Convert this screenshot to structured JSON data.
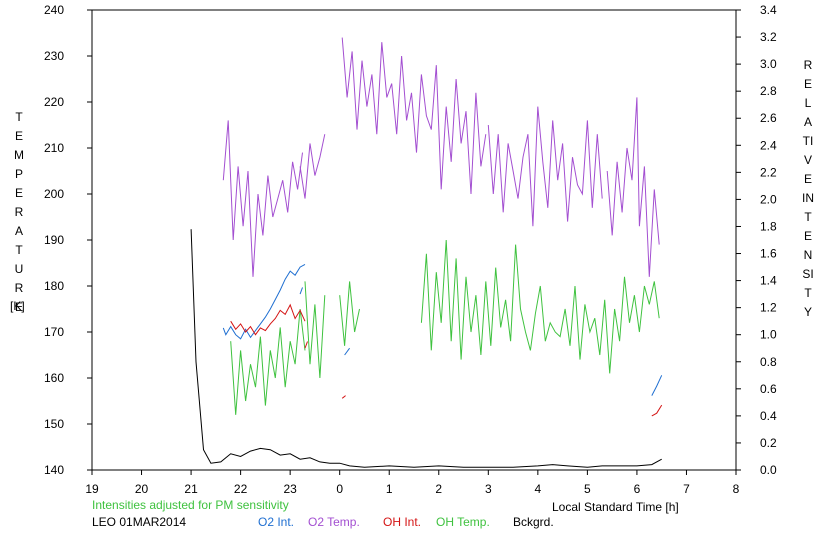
{
  "chart_data": {
    "type": "line",
    "x_axis": {
      "ticks": [
        "19",
        "20",
        "21",
        "22",
        "23",
        "0",
        "1",
        "2",
        "3",
        "4",
        "5",
        "6",
        "7",
        "8"
      ],
      "label": "Local Standard Time [h]"
    },
    "y_axis_left": {
      "label_vertical": "TEMPERATURE",
      "unit": "[K]",
      "ticks": [
        "240",
        "230",
        "220",
        "210",
        "200",
        "190",
        "180",
        "170",
        "160",
        "150",
        "140"
      ],
      "ylim": [
        140,
        240
      ]
    },
    "y_axis_right": {
      "label_vertical": "RELATIVE  INTENSITY",
      "ticks": [
        "3.4",
        "3.2",
        "3.0",
        "2.8",
        "2.6",
        "2.4",
        "2.2",
        "2.0",
        "1.8",
        "1.6",
        "1.4",
        "1.2",
        "1.0",
        "0.8",
        "0.6",
        "0.4",
        "0.2",
        "0.0"
      ],
      "ylim": [
        0,
        3.4
      ]
    },
    "note": "Intensities adjusted for PM sensitivity",
    "station": "LEO 01MAR2014",
    "legend": [
      {
        "name": "O2 Int.",
        "color": "#1f6fd1"
      },
      {
        "name": "O2 Temp.",
        "color": "#a34fd1"
      },
      {
        "name": "OH Int.",
        "color": "#d41414"
      },
      {
        "name": "OH Temp.",
        "color": "#3fc23f"
      },
      {
        "name": "Bckgrd.",
        "color": "#000000"
      }
    ],
    "series": [
      {
        "name": "Bckgrd.",
        "axis": "right",
        "color": "#000000",
        "x": [
          21.0,
          21.1,
          21.25,
          21.4,
          21.6,
          21.8,
          22.0,
          22.2,
          22.4,
          22.6,
          22.8,
          23.0,
          23.2,
          23.4,
          23.6,
          23.8,
          24.0,
          24.2,
          24.5,
          25.0,
          25.5,
          26.0,
          26.5,
          27.0,
          27.5,
          28.0,
          28.3,
          28.6,
          29.0,
          29.3,
          29.6,
          30.0,
          30.3,
          30.5
        ],
        "y": [
          1.78,
          0.8,
          0.15,
          0.05,
          0.06,
          0.12,
          0.1,
          0.14,
          0.16,
          0.15,
          0.11,
          0.12,
          0.08,
          0.09,
          0.06,
          0.05,
          0.05,
          0.03,
          0.02,
          0.03,
          0.02,
          0.03,
          0.02,
          0.02,
          0.02,
          0.03,
          0.04,
          0.03,
          0.02,
          0.03,
          0.03,
          0.03,
          0.04,
          0.08
        ]
      },
      {
        "name": "O2 Temp.",
        "axis": "left",
        "color": "#a34fd1",
        "segments": [
          {
            "x": [
              21.65,
              21.75,
              21.85,
              21.95,
              22.05,
              22.15,
              22.25,
              22.35,
              22.45,
              22.55,
              22.65,
              22.75,
              22.85,
              22.95,
              23.05,
              23.15,
              23.25
            ],
            "y": [
              203,
              216,
              190,
              206,
              193,
              205,
              182,
              200,
              191,
              204,
              195,
              199,
              203,
              196,
              207,
              201,
              209
            ]
          },
          {
            "x": [
              23.2,
              23.3,
              23.4,
              23.5,
              23.6,
              23.7
            ],
            "y": [
              206,
              199,
              211,
              204,
              208,
              213
            ]
          },
          {
            "x": [
              24.05,
              24.15,
              24.25,
              24.35,
              24.45,
              24.55,
              24.65,
              24.75,
              24.85,
              24.95,
              25.05,
              25.15,
              25.25,
              25.35,
              25.45,
              25.55,
              25.65,
              25.75,
              25.85,
              25.95,
              26.05,
              26.15,
              26.25,
              26.35,
              26.45,
              26.55,
              26.65,
              26.75,
              26.85,
              26.95
            ],
            "y": [
              234,
              221,
              231,
              214,
              229,
              219,
              226,
              213,
              233,
              221,
              224,
              213,
              230,
              216,
              222,
              209,
              226,
              217,
              214,
              228,
              201,
              219,
              207,
              225,
              211,
              218,
              200,
              222,
              206,
              213
            ]
          },
          {
            "x": [
              27.0,
              27.1,
              27.2,
              27.3,
              27.4,
              27.5,
              27.6,
              27.7,
              27.8,
              27.9,
              28.0,
              28.1,
              28.2,
              28.3,
              28.4,
              28.5,
              28.6,
              28.7,
              28.8,
              28.9,
              29.0,
              29.1,
              29.2,
              29.3
            ],
            "y": [
              215,
              200,
              213,
              196,
              211,
              205,
              199,
              208,
              213,
              193,
              219,
              207,
              197,
              216,
              203,
              211,
              194,
              208,
              202,
              200,
              216,
              197,
              213,
              199
            ]
          },
          {
            "x": [
              29.4,
              29.5,
              29.6,
              29.7,
              29.8,
              29.9,
              30.0,
              30.05,
              30.15,
              30.25,
              30.35,
              30.45
            ],
            "y": [
              205,
              191,
              207,
              196,
              210,
              203,
              221,
              193,
              206,
              182,
              201,
              189
            ]
          }
        ]
      },
      {
        "name": "O2 Int.",
        "axis": "right",
        "color": "#1f6fd1",
        "segments": [
          {
            "x": [
              21.65,
              21.7,
              21.8,
              21.9,
              22.0,
              22.1,
              22.2,
              22.3,
              22.4,
              22.5,
              22.6,
              22.7,
              22.8,
              22.9,
              23.0,
              23.1,
              23.2,
              23.3
            ],
            "y": [
              1.05,
              1.0,
              1.06,
              1.0,
              0.97,
              1.04,
              0.98,
              1.03,
              1.08,
              1.13,
              1.19,
              1.26,
              1.33,
              1.41,
              1.47,
              1.44,
              1.5,
              1.52
            ]
          },
          {
            "x": [
              23.2,
              23.25
            ],
            "y": [
              1.3,
              1.35
            ]
          },
          {
            "x": [
              24.1,
              24.2
            ],
            "y": [
              0.85,
              0.9
            ]
          },
          {
            "x": [
              30.3,
              30.4,
              30.5
            ],
            "y": [
              0.55,
              0.62,
              0.7
            ]
          }
        ]
      },
      {
        "name": "OH Int.",
        "axis": "right",
        "color": "#d41414",
        "segments": [
          {
            "x": [
              21.8,
              21.9,
              22.0,
              22.1,
              22.2,
              22.3,
              22.4,
              22.5,
              22.6,
              22.7,
              22.8,
              22.9,
              23.0,
              23.1,
              23.2,
              23.3
            ],
            "y": [
              1.1,
              1.04,
              1.08,
              1.02,
              1.06,
              1.0,
              1.05,
              1.03,
              1.08,
              1.12,
              1.18,
              1.15,
              1.22,
              1.12,
              1.18,
              1.1
            ]
          },
          {
            "x": [
              23.3,
              23.35
            ],
            "y": [
              0.9,
              0.95
            ]
          },
          {
            "x": [
              24.05,
              24.12
            ],
            "y": [
              0.53,
              0.55
            ]
          },
          {
            "x": [
              30.3,
              30.4,
              30.5
            ],
            "y": [
              0.4,
              0.42,
              0.48
            ]
          }
        ]
      },
      {
        "name": "OH Temp.",
        "axis": "left",
        "color": "#3fc23f",
        "segments": [
          {
            "x": [
              21.8,
              21.9,
              22.0,
              22.1,
              22.2,
              22.3,
              22.4,
              22.5,
              22.6,
              22.7,
              22.8,
              22.9,
              23.0,
              23.1,
              23.2,
              23.3
            ],
            "y": [
              168,
              152,
              166,
              155,
              163,
              158,
              169,
              154,
              166,
              160,
              171,
              158,
              168,
              163,
              175,
              166
            ]
          },
          {
            "x": [
              23.3,
              23.4,
              23.5,
              23.6,
              23.7
            ],
            "y": [
              181,
              163,
              176,
              160,
              178
            ]
          },
          {
            "x": [
              24.0,
              24.1,
              24.2,
              24.3,
              24.4
            ],
            "y": [
              178,
              167,
              181,
              170,
              175
            ]
          },
          {
            "x": [
              25.65,
              25.75,
              25.85,
              25.95,
              26.05,
              26.15,
              26.25,
              26.35,
              26.45,
              26.55,
              26.65,
              26.75,
              26.85,
              26.95,
              27.05,
              27.15,
              27.25,
              27.35,
              27.45,
              27.55,
              27.65,
              27.75,
              27.85,
              27.95,
              28.05,
              28.15,
              28.25,
              28.35,
              28.45,
              28.55,
              28.65,
              28.75,
              28.85,
              28.95,
              29.05,
              29.15,
              29.25,
              29.35,
              29.45,
              29.55,
              29.65,
              29.75,
              29.85,
              29.95,
              30.05,
              30.15,
              30.25,
              30.35,
              30.45
            ],
            "y": [
              172,
              187,
              166,
              183,
              172,
              190,
              168,
              186,
              164,
              182,
              170,
              178,
              165,
              181,
              167,
              184,
              171,
              177,
              168,
              189,
              175,
              170,
              166,
              174,
              180,
              168,
              172,
              170,
              169,
              175,
              167,
              180,
              164,
              176,
              170,
              173,
              165,
              177,
              161,
              175,
              168,
              182,
              172,
              178,
              170,
              180,
              176,
              181,
              173
            ]
          }
        ]
      }
    ]
  }
}
